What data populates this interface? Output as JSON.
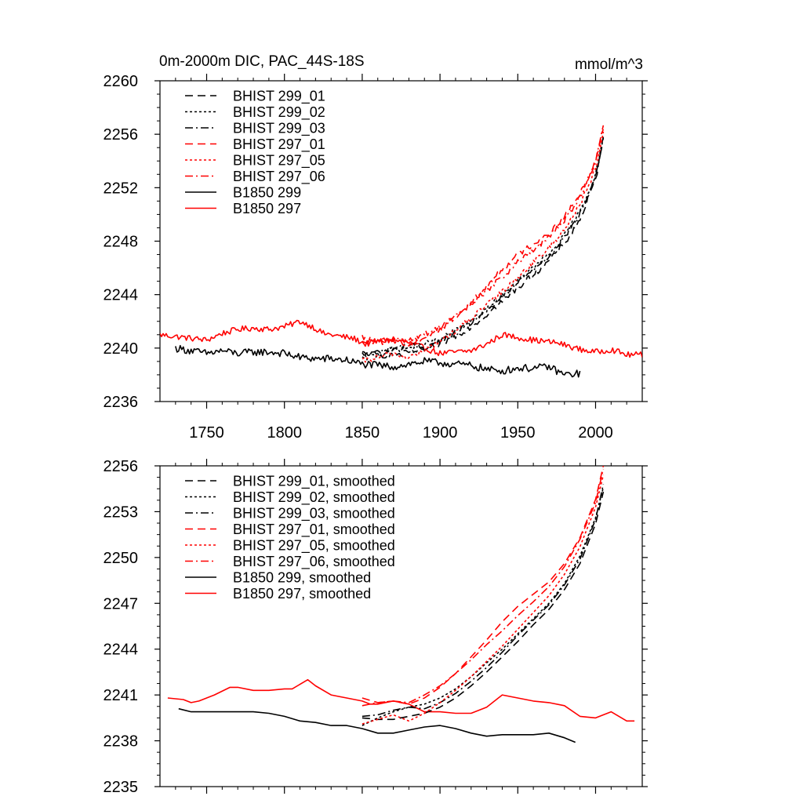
{
  "title_left": "0m-2000m DIC, PAC_44S-18S",
  "title_right": "mmol/m^3",
  "colors": {
    "black": "#000000",
    "red": "#ff0000"
  },
  "chart_data": [
    {
      "type": "line",
      "name": "top",
      "xlim": [
        1720,
        2030
      ],
      "ylim": [
        2236,
        2260
      ],
      "yticks": [
        2236,
        2240,
        2244,
        2248,
        2252,
        2256,
        2260
      ],
      "ytick_labels": [
        "2236",
        "2240",
        "2244",
        "2248",
        "2252",
        "2256",
        "2260"
      ],
      "xticks": [
        1750,
        1800,
        1850,
        1900,
        1950,
        2000
      ],
      "xtick_labels": [
        "1750",
        "1800",
        "1850",
        "1900",
        "1950",
        "2000"
      ],
      "legend": [
        {
          "label": "BHIST 299_01",
          "color": "#000000",
          "dash": "dash"
        },
        {
          "label": "BHIST 299_02",
          "color": "#000000",
          "dash": "dot"
        },
        {
          "label": "BHIST 299_03",
          "color": "#000000",
          "dash": "dashdot"
        },
        {
          "label": "BHIST 297_01",
          "color": "#ff0000",
          "dash": "dash"
        },
        {
          "label": "BHIST 297_05",
          "color": "#ff0000",
          "dash": "dot"
        },
        {
          "label": "BHIST 297_06",
          "color": "#ff0000",
          "dash": "dashdot"
        },
        {
          "label": "B1850 299",
          "color": "#000000",
          "dash": "solid"
        },
        {
          "label": "B1850 297",
          "color": "#ff0000",
          "dash": "solid"
        }
      ],
      "series": [
        {
          "name": "B1850 297",
          "color": "#ff0000",
          "dash": "solid",
          "noise": 0.22,
          "x": [
            1720,
            1735,
            1750,
            1760,
            1770,
            1780,
            1790,
            1800,
            1810,
            1818,
            1825,
            1835,
            1845,
            1852,
            1860,
            1870,
            1880,
            1890,
            1900,
            1910,
            1920,
            1930,
            1940,
            1950,
            1960,
            1975,
            1990,
            2000,
            2010,
            2020,
            2030
          ],
          "y": [
            2241.0,
            2240.8,
            2240.6,
            2241.1,
            2241.4,
            2241.5,
            2241.4,
            2241.6,
            2242.0,
            2241.6,
            2241.1,
            2240.9,
            2240.7,
            2240.3,
            2240.5,
            2240.6,
            2240.4,
            2240.0,
            2239.6,
            2239.7,
            2239.8,
            2240.3,
            2241.0,
            2240.8,
            2240.6,
            2240.4,
            2239.9,
            2239.7,
            2239.9,
            2239.5,
            2239.5
          ]
        },
        {
          "name": "B1850 299",
          "color": "#000000",
          "dash": "solid",
          "noise": 0.28,
          "x": [
            1730,
            1740,
            1750,
            1760,
            1770,
            1780,
            1790,
            1800,
            1810,
            1820,
            1830,
            1840,
            1850,
            1860,
            1870,
            1880,
            1890,
            1900,
            1910,
            1920,
            1930,
            1940,
            1950,
            1960,
            1970,
            1980,
            1990
          ],
          "y": [
            2240.0,
            2239.8,
            2239.6,
            2239.8,
            2239.6,
            2239.7,
            2239.7,
            2239.6,
            2239.3,
            2239.2,
            2239.2,
            2239.1,
            2238.8,
            2238.7,
            2238.6,
            2238.8,
            2239.0,
            2238.9,
            2238.8,
            2238.7,
            2238.4,
            2238.3,
            2238.5,
            2238.5,
            2238.6,
            2238.0,
            2238.1
          ]
        },
        {
          "name": "BHIST 299_01",
          "color": "#000000",
          "dash": "dash",
          "noise": 0.22,
          "x": [
            1850,
            1860,
            1870,
            1880,
            1890,
            1900,
            1910,
            1920,
            1930,
            1940,
            1950,
            1960,
            1970,
            1980,
            1990,
            2000,
            2005
          ],
          "y": [
            2239.6,
            2239.5,
            2239.4,
            2239.7,
            2239.9,
            2240.3,
            2240.9,
            2241.6,
            2242.5,
            2243.5,
            2244.5,
            2245.5,
            2246.5,
            2247.8,
            2249.6,
            2252.6,
            2255.5
          ]
        },
        {
          "name": "BHIST 299_02",
          "color": "#000000",
          "dash": "dot",
          "noise": 0.22,
          "x": [
            1850,
            1860,
            1870,
            1880,
            1890,
            1900,
            1910,
            1920,
            1930,
            1940,
            1950,
            1960,
            1970,
            1980,
            1990,
            2000,
            2005
          ],
          "y": [
            2239.2,
            2239.5,
            2239.9,
            2240.0,
            2240.3,
            2240.6,
            2241.3,
            2242.0,
            2242.9,
            2243.9,
            2245.0,
            2246.0,
            2247.0,
            2248.4,
            2250.2,
            2253.0,
            2255.6
          ]
        },
        {
          "name": "BHIST 299_03",
          "color": "#000000",
          "dash": "dashdot",
          "noise": 0.22,
          "x": [
            1850,
            1860,
            1870,
            1880,
            1890,
            1900,
            1910,
            1920,
            1930,
            1940,
            1950,
            1960,
            1970,
            1980,
            1990,
            2000,
            2005
          ],
          "y": [
            2239.5,
            2239.7,
            2240.0,
            2240.2,
            2240.0,
            2240.5,
            2241.1,
            2241.9,
            2242.8,
            2243.8,
            2244.9,
            2245.9,
            2246.9,
            2248.3,
            2250.0,
            2252.8,
            2255.8
          ]
        },
        {
          "name": "BHIST 297_01",
          "color": "#ff0000",
          "dash": "dash",
          "noise": 0.22,
          "x": [
            1850,
            1860,
            1870,
            1880,
            1890,
            1900,
            1910,
            1920,
            1930,
            1940,
            1950,
            1960,
            1970,
            1980,
            1990,
            2000,
            2005
          ],
          "y": [
            2240.8,
            2240.4,
            2240.6,
            2240.2,
            2240.8,
            2241.4,
            2242.3,
            2243.4,
            2244.6,
            2245.9,
            2247.0,
            2247.8,
            2248.6,
            2249.8,
            2251.5,
            2254.0,
            2256.5
          ]
        },
        {
          "name": "BHIST 297_05",
          "color": "#ff0000",
          "dash": "dot",
          "noise": 0.22,
          "x": [
            1850,
            1860,
            1870,
            1880,
            1890,
            1900,
            1910,
            1920,
            1930,
            1940,
            1950,
            1960,
            1970,
            1980,
            1990,
            2000,
            2005
          ],
          "y": [
            2239.0,
            2239.3,
            2239.6,
            2239.3,
            2239.8,
            2240.5,
            2241.3,
            2242.2,
            2243.2,
            2244.2,
            2245.3,
            2246.4,
            2247.5,
            2248.9,
            2250.7,
            2253.4,
            2256.0
          ]
        },
        {
          "name": "BHIST 297_06",
          "color": "#ff0000",
          "dash": "dashdot",
          "noise": 0.22,
          "x": [
            1850,
            1860,
            1870,
            1880,
            1890,
            1900,
            1910,
            1920,
            1930,
            1940,
            1950,
            1960,
            1970,
            1980,
            1990,
            2000,
            2005
          ],
          "y": [
            2240.3,
            2240.5,
            2240.8,
            2240.6,
            2241.0,
            2241.6,
            2242.4,
            2243.3,
            2244.3,
            2245.3,
            2246.4,
            2247.3,
            2248.3,
            2249.6,
            2251.3,
            2253.9,
            2256.6
          ]
        }
      ]
    },
    {
      "type": "line",
      "name": "bottom",
      "xlim": [
        1720,
        2030
      ],
      "ylim": [
        2235,
        2256
      ],
      "yticks": [
        2235,
        2238,
        2241,
        2244,
        2247,
        2250,
        2253,
        2256
      ],
      "ytick_labels": [
        "2235",
        "2238",
        "2241",
        "2244",
        "2247",
        "2250",
        "2253",
        "2256"
      ],
      "xticks": [
        1750,
        1800,
        1850,
        1900,
        1950,
        2000
      ],
      "xtick_labels": [],
      "legend": [
        {
          "label": "BHIST 299_01, smoothed",
          "color": "#000000",
          "dash": "dash"
        },
        {
          "label": "BHIST 299_02, smoothed",
          "color": "#000000",
          "dash": "dot"
        },
        {
          "label": "BHIST 299_03, smoothed",
          "color": "#000000",
          "dash": "dashdot"
        },
        {
          "label": "BHIST 297_01, smoothed",
          "color": "#ff0000",
          "dash": "dash"
        },
        {
          "label": "BHIST 297_05, smoothed",
          "color": "#ff0000",
          "dash": "dot"
        },
        {
          "label": "BHIST 297_06, smoothed",
          "color": "#ff0000",
          "dash": "dashdot"
        },
        {
          "label": "B1850 299, smoothed",
          "color": "#000000",
          "dash": "solid"
        },
        {
          "label": "B1850 297, smoothed",
          "color": "#ff0000",
          "dash": "solid"
        }
      ],
      "series": [
        {
          "name": "B1850 297, smoothed",
          "color": "#ff0000",
          "dash": "solid",
          "noise": 0,
          "x": [
            1725,
            1735,
            1740,
            1745,
            1755,
            1765,
            1770,
            1780,
            1790,
            1800,
            1805,
            1815,
            1820,
            1830,
            1840,
            1850,
            1855,
            1860,
            1870,
            1880,
            1890,
            1900,
            1910,
            1920,
            1930,
            1940,
            1950,
            1960,
            1970,
            1980,
            1990,
            2000,
            2010,
            2020,
            2025
          ],
          "y": [
            2240.8,
            2240.7,
            2240.5,
            2240.6,
            2241.0,
            2241.5,
            2241.5,
            2241.3,
            2241.3,
            2241.4,
            2241.4,
            2242.0,
            2241.6,
            2241.0,
            2240.8,
            2240.6,
            2240.4,
            2240.4,
            2240.6,
            2240.4,
            2239.9,
            2239.9,
            2239.8,
            2239.8,
            2240.2,
            2241.0,
            2240.8,
            2240.6,
            2240.5,
            2240.3,
            2239.6,
            2239.5,
            2239.9,
            2239.3,
            2239.3
          ]
        },
        {
          "name": "B1850 299, smoothed",
          "color": "#000000",
          "dash": "solid",
          "noise": 0,
          "x": [
            1732,
            1740,
            1750,
            1760,
            1770,
            1780,
            1790,
            1800,
            1810,
            1820,
            1830,
            1840,
            1850,
            1860,
            1870,
            1880,
            1890,
            1900,
            1910,
            1920,
            1930,
            1940,
            1950,
            1960,
            1970,
            1980,
            1987
          ],
          "y": [
            2240.1,
            2239.9,
            2239.9,
            2239.9,
            2239.9,
            2239.9,
            2239.8,
            2239.6,
            2239.3,
            2239.2,
            2239.0,
            2239.0,
            2238.8,
            2238.5,
            2238.5,
            2238.7,
            2238.9,
            2239.0,
            2238.8,
            2238.5,
            2238.3,
            2238.4,
            2238.4,
            2238.4,
            2238.5,
            2238.2,
            2237.9
          ]
        },
        {
          "name": "BHIST 299_01, smoothed",
          "color": "#000000",
          "dash": "dash",
          "noise": 0,
          "x": [
            1850,
            1860,
            1870,
            1880,
            1890,
            1900,
            1910,
            1920,
            1930,
            1940,
            1950,
            1960,
            1970,
            1980,
            1990,
            2000,
            2005
          ],
          "y": [
            2239.5,
            2239.4,
            2239.4,
            2239.6,
            2239.8,
            2240.2,
            2240.8,
            2241.6,
            2242.5,
            2243.5,
            2244.5,
            2245.6,
            2246.6,
            2247.9,
            2249.6,
            2252.2,
            2254.3
          ]
        },
        {
          "name": "BHIST 299_02, smoothed",
          "color": "#000000",
          "dash": "dot",
          "noise": 0,
          "x": [
            1850,
            1860,
            1870,
            1880,
            1890,
            1900,
            1910,
            1920,
            1930,
            1940,
            1950,
            1960,
            1970,
            1980,
            1990,
            2000,
            2005
          ],
          "y": [
            2239.0,
            2239.5,
            2239.9,
            2240.2,
            2240.4,
            2240.8,
            2241.4,
            2242.2,
            2243.1,
            2244.0,
            2245.0,
            2246.0,
            2247.0,
            2248.3,
            2250.1,
            2252.6,
            2254.6
          ]
        },
        {
          "name": "BHIST 299_03, smoothed",
          "color": "#000000",
          "dash": "dashdot",
          "noise": 0,
          "x": [
            1850,
            1860,
            1870,
            1880,
            1890,
            1900,
            1910,
            1920,
            1930,
            1940,
            1950,
            1960,
            1970,
            1980,
            1990,
            2000,
            2005
          ],
          "y": [
            2239.6,
            2239.7,
            2240.0,
            2240.2,
            2240.1,
            2240.5,
            2241.1,
            2241.9,
            2242.8,
            2243.8,
            2244.9,
            2245.9,
            2246.9,
            2248.2,
            2249.9,
            2252.5,
            2254.8
          ]
        },
        {
          "name": "BHIST 297_01, smoothed",
          "color": "#ff0000",
          "dash": "dash",
          "noise": 0,
          "x": [
            1850,
            1860,
            1870,
            1880,
            1890,
            1900,
            1910,
            1920,
            1930,
            1940,
            1950,
            1960,
            1970,
            1980,
            1990,
            2000,
            2005
          ],
          "y": [
            2240.8,
            2240.5,
            2240.6,
            2240.4,
            2240.8,
            2241.5,
            2242.4,
            2243.5,
            2244.6,
            2245.8,
            2246.8,
            2247.6,
            2248.4,
            2249.6,
            2251.3,
            2253.8,
            2256.0
          ]
        },
        {
          "name": "BHIST 297_05, smoothed",
          "color": "#ff0000",
          "dash": "dot",
          "noise": 0,
          "x": [
            1850,
            1860,
            1870,
            1880,
            1890,
            1900,
            1910,
            1920,
            1930,
            1940,
            1950,
            1960,
            1970,
            1980,
            1990,
            2000,
            2005
          ],
          "y": [
            2239.1,
            2239.4,
            2239.7,
            2239.3,
            2239.8,
            2240.5,
            2241.3,
            2242.2,
            2243.2,
            2244.2,
            2245.3,
            2246.4,
            2247.5,
            2248.9,
            2250.7,
            2253.3,
            2255.4
          ]
        },
        {
          "name": "BHIST 297_06, smoothed",
          "color": "#ff0000",
          "dash": "dashdot",
          "noise": 0,
          "x": [
            1850,
            1860,
            1870,
            1880,
            1890,
            1900,
            1910,
            1920,
            1930,
            1940,
            1950,
            1960,
            1970,
            1980,
            1990,
            2000,
            2005
          ],
          "y": [
            2240.3,
            2240.5,
            2240.6,
            2240.5,
            2241.0,
            2241.6,
            2242.4,
            2243.3,
            2244.3,
            2245.2,
            2246.2,
            2247.1,
            2248.1,
            2249.4,
            2251.2,
            2253.6,
            2255.8
          ]
        }
      ]
    }
  ]
}
